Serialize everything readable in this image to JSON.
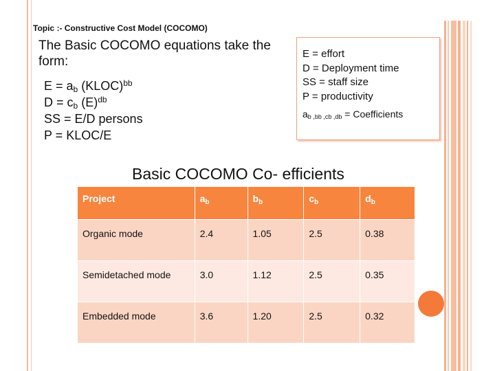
{
  "slide": {
    "topic": "Topic :- Constructive Cost Model (COCOMO)",
    "intro": "The Basic COCOMO equations take the form:",
    "equations": [
      {
        "lhs": "E = a",
        "sub": "b",
        "rest": " (KLOC)",
        "sup": "bb"
      },
      {
        "lhs": "D = c",
        "sub": "b",
        "rest": " (E)",
        "sup": "db"
      },
      {
        "lhs": "SS = E/D persons",
        "sub": "",
        "rest": "",
        "sup": ""
      },
      {
        "lhs": "P = KLOC/E",
        "sub": "",
        "rest": "",
        "sup": ""
      }
    ],
    "legend": {
      "lines": [
        "E = effort",
        "D = Deployment time",
        "SS = staff size",
        "P = productivity"
      ],
      "coef_parts": [
        "a",
        "b",
        " ,b",
        "b",
        " ,c",
        "b",
        " ,d",
        "b",
        " = Coefficients"
      ]
    },
    "table_title": "Basic COCOMO Co- efficients",
    "table": {
      "headers": [
        {
          "base": "Project",
          "sub": ""
        },
        {
          "base": "a",
          "sub": "b"
        },
        {
          "base": "b",
          "sub": "b"
        },
        {
          "base": "c",
          "sub": "b"
        },
        {
          "base": "d",
          "sub": "b"
        }
      ],
      "rows": [
        [
          "Organic mode",
          "2.4",
          "1.05",
          "2.5",
          "0.38"
        ],
        [
          "Semidetached mode",
          "3.0",
          "1.12",
          "2.5",
          "0.35"
        ],
        [
          "Embedded mode",
          "3.6",
          "1.20",
          "2.5",
          "0.32"
        ]
      ]
    },
    "colors": {
      "accent": "#f7853e",
      "row_dark": "#fbd5c4",
      "row_light": "#fde9e1",
      "frame": "#f4b89a"
    }
  }
}
